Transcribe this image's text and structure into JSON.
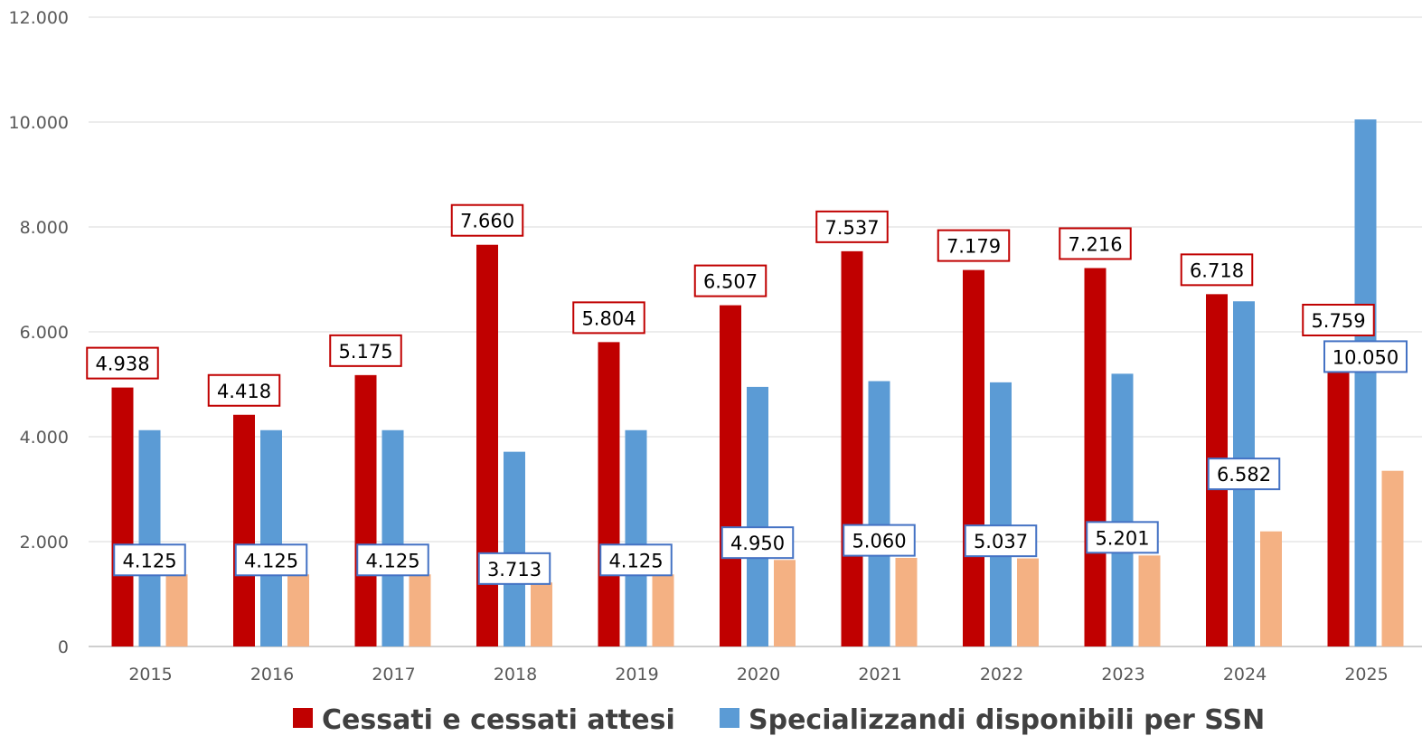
{
  "chart_data": {
    "type": "bar",
    "title": "",
    "xlabel": "",
    "ylabel": "",
    "ylim": [
      0,
      12000
    ],
    "yticks": [
      0,
      2000,
      4000,
      6000,
      8000,
      10000,
      12000
    ],
    "ytick_labels": [
      "0",
      "2.000",
      "4.000",
      "6.000",
      "8.000",
      "10.000",
      "12.000"
    ],
    "grid": true,
    "legend_position": "bottom",
    "categories": [
      "2015",
      "2016",
      "2017",
      "2018",
      "2019",
      "2020",
      "2021",
      "2022",
      "2023",
      "2024",
      "2025"
    ],
    "series": [
      {
        "name": "Cessati e cessati attesi",
        "color": "#C00000",
        "values": [
          4938,
          4418,
          5175,
          7660,
          5804,
          6507,
          7537,
          7179,
          7216,
          6718,
          5759
        ],
        "labels": [
          "4.938",
          "4.418",
          "5.175",
          "7.660",
          "5.804",
          "6.507",
          "7.537",
          "7.179",
          "7.216",
          "6.718",
          "5.759"
        ]
      },
      {
        "name": "Specializzandi disponibili per SSN",
        "color": "#5B9BD5",
        "values": [
          4125,
          4125,
          4125,
          3713,
          4125,
          4950,
          5060,
          5037,
          5201,
          6582,
          10050
        ],
        "labels": [
          "4.125",
          "4.125",
          "4.125",
          "3.713",
          "4.125",
          "4.950",
          "5.060",
          "5.037",
          "5.201",
          "6.582",
          "10.050"
        ]
      },
      {
        "color": "#F4B183",
        "values": [
          1375,
          1375,
          1375,
          1220,
          1375,
          1650,
          1690,
          1680,
          1735,
          2195,
          3350
        ]
      }
    ]
  }
}
